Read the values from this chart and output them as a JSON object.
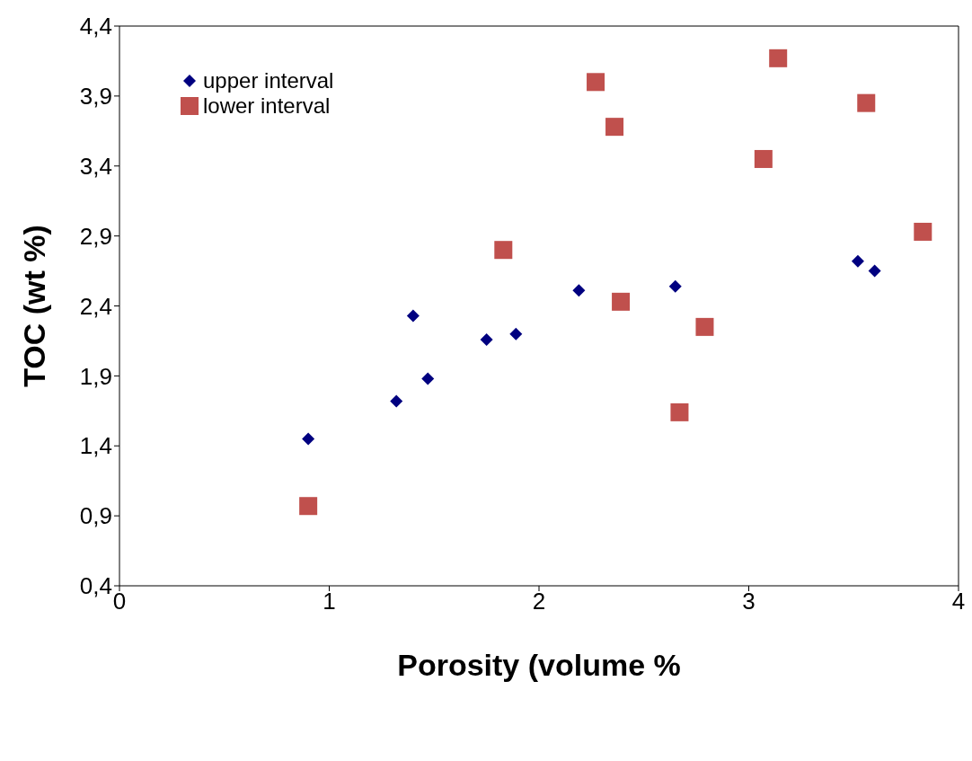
{
  "chart_data": {
    "type": "scatter",
    "xlabel": "Porosity (volume %",
    "ylabel": "TOC (wt %)",
    "xlim": [
      0,
      4
    ],
    "xticks": [
      0,
      1,
      2,
      3,
      4
    ],
    "ylim": [
      0.4,
      4.4
    ],
    "yticks": [
      {
        "value": 0.4,
        "label": "0,4"
      },
      {
        "value": 0.9,
        "label": "0,9"
      },
      {
        "value": 1.4,
        "label": "1,4"
      },
      {
        "value": 1.9,
        "label": "1,9"
      },
      {
        "value": 2.4,
        "label": "2,4"
      },
      {
        "value": 2.9,
        "label": "2,9"
      },
      {
        "value": 3.4,
        "label": "3,4"
      },
      {
        "value": 3.9,
        "label": "3,9"
      },
      {
        "value": 4.4,
        "label": "4,4"
      }
    ],
    "grid": false,
    "legend": "top left",
    "series": [
      {
        "name": "upper interval",
        "color": "#000080",
        "marker": "diamond",
        "x": [
          0.9,
          1.32,
          1.4,
          1.47,
          1.75,
          1.89,
          2.19,
          2.65,
          3.52,
          3.6
        ],
        "values": [
          1.45,
          1.72,
          2.33,
          1.88,
          2.16,
          2.2,
          2.51,
          2.54,
          2.72,
          2.65
        ]
      },
      {
        "name": "lower interval",
        "color": "#c0504d",
        "marker": "square",
        "x": [
          0.9,
          1.83,
          2.27,
          2.36,
          2.39,
          2.67,
          2.79,
          3.07,
          3.14,
          3.56,
          3.83
        ],
        "values": [
          0.97,
          2.8,
          4.0,
          3.68,
          2.43,
          1.64,
          2.25,
          3.45,
          4.17,
          3.85,
          2.93
        ]
      }
    ]
  }
}
